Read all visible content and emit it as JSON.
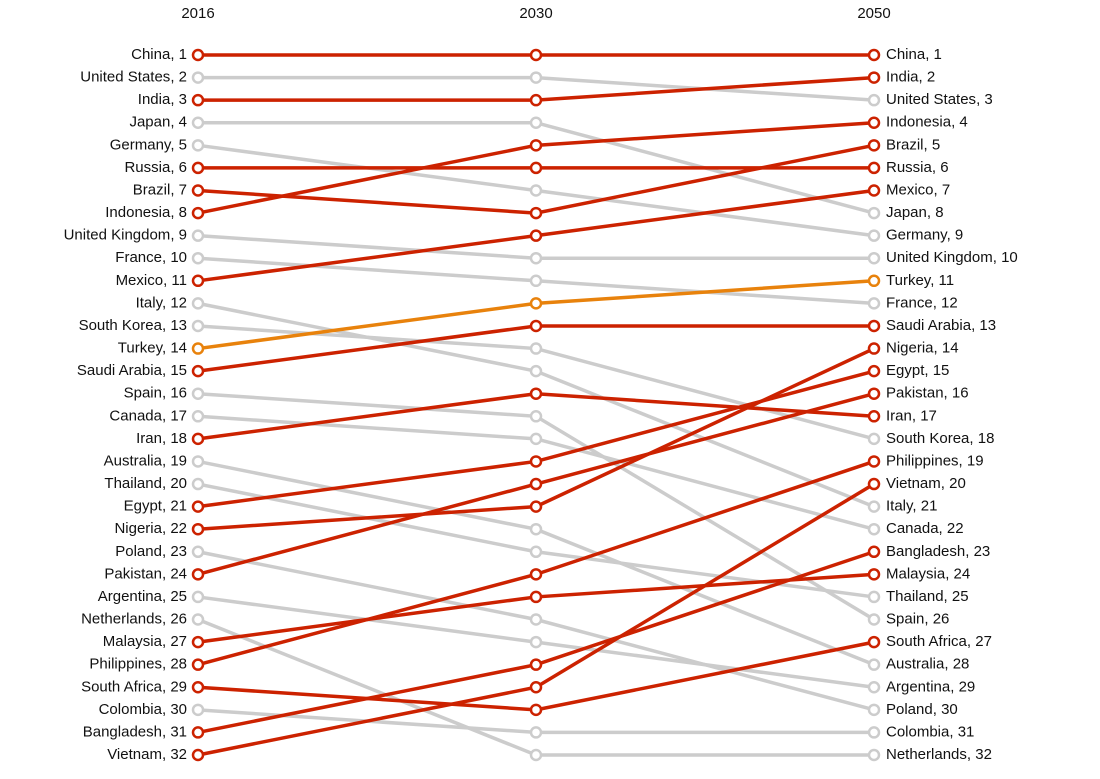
{
  "chart_data": {
    "type": "slope",
    "categories": [
      "2016",
      "2030",
      "2050"
    ],
    "separator": ", ",
    "ylim": [
      1,
      32
    ],
    "y_inverted": true,
    "series": [
      {
        "name": "China",
        "color": "#cc2200",
        "values": [
          1,
          1,
          1
        ]
      },
      {
        "name": "United States",
        "color": "#cccccc",
        "values": [
          2,
          2,
          3
        ]
      },
      {
        "name": "India",
        "color": "#cc2200",
        "values": [
          3,
          3,
          2
        ]
      },
      {
        "name": "Japan",
        "color": "#cccccc",
        "values": [
          4,
          4,
          8
        ]
      },
      {
        "name": "Germany",
        "color": "#cccccc",
        "values": [
          5,
          7,
          9
        ]
      },
      {
        "name": "Russia",
        "color": "#cc2200",
        "values": [
          6,
          6,
          6
        ]
      },
      {
        "name": "Brazil",
        "color": "#cc2200",
        "values": [
          7,
          8,
          5
        ]
      },
      {
        "name": "Indonesia",
        "color": "#cc2200",
        "values": [
          8,
          5,
          4
        ]
      },
      {
        "name": "United Kingdom",
        "color": "#cccccc",
        "values": [
          9,
          10,
          10
        ]
      },
      {
        "name": "France",
        "color": "#cccccc",
        "values": [
          10,
          11,
          12
        ]
      },
      {
        "name": "Mexico",
        "color": "#cc2200",
        "values": [
          11,
          9,
          7
        ]
      },
      {
        "name": "Italy",
        "color": "#cccccc",
        "values": [
          12,
          15,
          21
        ]
      },
      {
        "name": "South Korea",
        "color": "#cccccc",
        "values": [
          13,
          14,
          18
        ]
      },
      {
        "name": "Turkey",
        "color": "#e8820c",
        "values": [
          14,
          12,
          11
        ]
      },
      {
        "name": "Saudi Arabia",
        "color": "#cc2200",
        "values": [
          15,
          13,
          13
        ]
      },
      {
        "name": "Spain",
        "color": "#cccccc",
        "values": [
          16,
          17,
          26
        ]
      },
      {
        "name": "Canada",
        "color": "#cccccc",
        "values": [
          17,
          18,
          22
        ]
      },
      {
        "name": "Iran",
        "color": "#cc2200",
        "values": [
          18,
          16,
          17
        ]
      },
      {
        "name": "Australia",
        "color": "#cccccc",
        "values": [
          19,
          22,
          28
        ]
      },
      {
        "name": "Thailand",
        "color": "#cccccc",
        "values": [
          20,
          23,
          25
        ]
      },
      {
        "name": "Egypt",
        "color": "#cc2200",
        "values": [
          21,
          19,
          15
        ]
      },
      {
        "name": "Nigeria",
        "color": "#cc2200",
        "values": [
          22,
          21,
          14
        ]
      },
      {
        "name": "Poland",
        "color": "#cccccc",
        "values": [
          23,
          26,
          30
        ]
      },
      {
        "name": "Pakistan",
        "color": "#cc2200",
        "values": [
          24,
          20,
          16
        ]
      },
      {
        "name": "Argentina",
        "color": "#cccccc",
        "values": [
          25,
          27,
          29
        ]
      },
      {
        "name": "Netherlands",
        "color": "#cccccc",
        "values": [
          26,
          32,
          32
        ]
      },
      {
        "name": "Malaysia",
        "color": "#cc2200",
        "values": [
          27,
          25,
          24
        ]
      },
      {
        "name": "Philippines",
        "color": "#cc2200",
        "values": [
          28,
          24,
          19
        ]
      },
      {
        "name": "South Africa",
        "color": "#cc2200",
        "values": [
          29,
          30,
          27
        ]
      },
      {
        "name": "Colombia",
        "color": "#cccccc",
        "values": [
          30,
          31,
          31
        ]
      },
      {
        "name": "Bangladesh",
        "color": "#cc2200",
        "values": [
          31,
          28,
          23
        ]
      },
      {
        "name": "Vietnam",
        "color": "#cc2200",
        "values": [
          32,
          29,
          20
        ]
      }
    ]
  }
}
